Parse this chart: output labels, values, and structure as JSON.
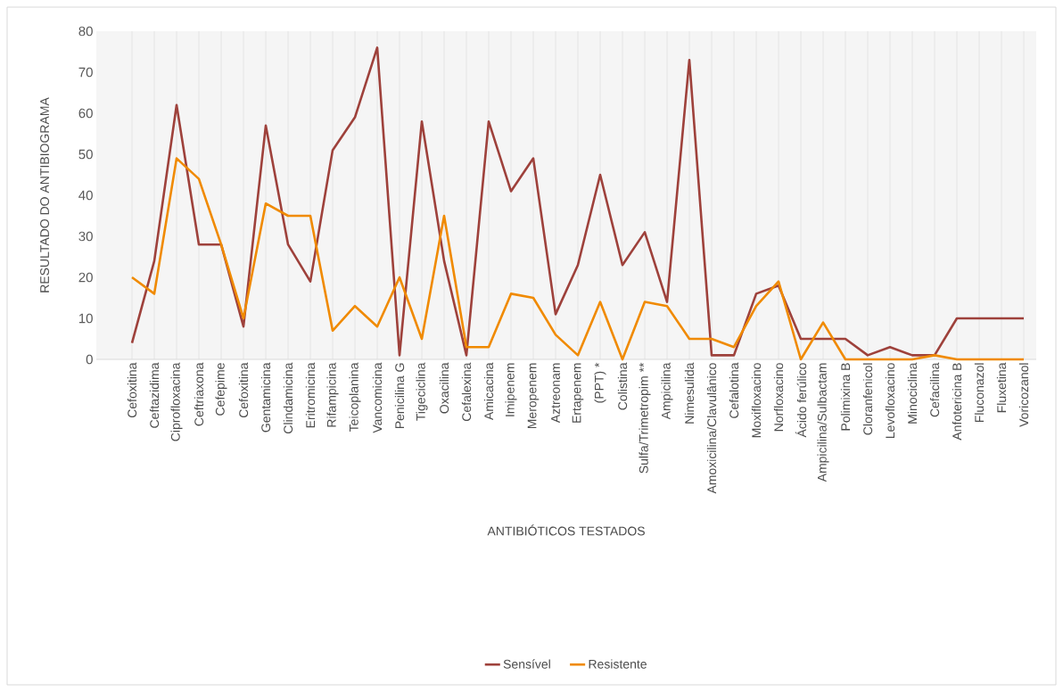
{
  "chart_data": {
    "type": "line",
    "xlabel": "ANTIBIÓTICOS TESTADOS",
    "ylabel": "RESULTADO DO ANTIBIOGRAMA",
    "categories": [
      "Cefoxitina",
      "Ceftazidima",
      "Ciprofloxacina",
      "Ceftriaxona",
      "Cefepime",
      "Cefoxitina",
      "Gentamicina",
      "Clindamicina",
      "Eritromicina",
      "Rifampicina",
      "Teicoplanina",
      "Vancomicina",
      "Penicilina G",
      "Tigeciclina",
      "Oxacilina",
      "Cefalexina",
      "Amicacina",
      "Imipenem",
      "Meropenem",
      "Aztreonam",
      "Ertapenem",
      "(PPT) *",
      "Colistina",
      "Sulfa/Trimetropim **",
      "Ampicilina",
      "Nimesulida",
      "Amoxicilina/Clavulânico",
      "Cefalotina",
      "Moxifloxacino",
      "Norfloxacino",
      "Ácido ferúlico",
      "Ampicilina/Sulbactam",
      "Polimixina B",
      "Cloranfenicol",
      "Levofloxacino",
      "Minociclina",
      "Cefacilina",
      "Anfotericina B",
      "Fluconazol",
      "Fluxetina",
      "Voricozanol"
    ],
    "series": [
      {
        "name": "Sensível",
        "color": "#9e413b",
        "values": [
          4,
          24,
          62,
          28,
          28,
          8,
          57,
          28,
          19,
          51,
          59,
          76,
          1,
          58,
          24,
          1,
          58,
          41,
          49,
          11,
          23,
          45,
          23,
          31,
          14,
          73,
          1,
          1,
          16,
          18,
          5,
          5,
          5,
          1,
          3,
          1,
          1,
          10,
          10,
          10,
          10
        ]
      },
      {
        "name": "Resistente",
        "color": "#f08a00",
        "values": [
          20,
          16,
          49,
          44,
          28,
          10,
          38,
          35,
          35,
          7,
          13,
          8,
          20,
          5,
          35,
          3,
          3,
          16,
          15,
          6,
          1,
          14,
          0,
          14,
          13,
          5,
          5,
          3,
          13,
          19,
          0,
          9,
          0,
          0,
          0,
          0,
          1,
          0,
          0,
          0,
          0
        ]
      }
    ],
    "ylim": [
      0,
      80
    ],
    "yticks": [
      0,
      10,
      20,
      30,
      40,
      50,
      60,
      70,
      80
    ],
    "grid": "x",
    "legend": "bottom",
    "marker": "none",
    "line_style": "solid"
  }
}
